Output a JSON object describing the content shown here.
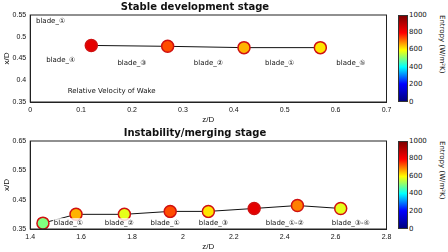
{
  "chart_data": [
    {
      "type": "scatter",
      "title": "Stable development stage",
      "xlabel": "z/D",
      "ylabel": "x/D",
      "xlim": [
        0,
        0.7
      ],
      "xticks": [
        0,
        0.1,
        0.2,
        0.3,
        0.4,
        0.5,
        0.6,
        0.7
      ],
      "ylim": [
        0.35,
        0.55
      ],
      "yticks": [
        0.35,
        0.4,
        0.45,
        0.5,
        0.55
      ],
      "grid": false,
      "series": [
        {
          "color": "#111111",
          "marker": "circle",
          "line_style": "solid",
          "x": [
            0.12,
            0.27,
            0.42,
            0.57
          ],
          "values": [
            0.48,
            0.478,
            0.475,
            0.475
          ],
          "entropy": [
            900,
            800,
            700,
            650
          ]
        }
      ],
      "annotations": [
        {
          "text": "blade_①",
          "x": 0.04,
          "y": 0.535
        },
        {
          "text": "blade_④",
          "x": 0.06,
          "y": 0.445
        },
        {
          "text": "blade_③",
          "x": 0.2,
          "y": 0.44
        },
        {
          "text": "blade_②",
          "x": 0.35,
          "y": 0.44
        },
        {
          "text": "blade_①",
          "x": 0.49,
          "y": 0.44
        },
        {
          "text": "blade_⑤",
          "x": 0.63,
          "y": 0.44
        },
        {
          "text": "Relative Velocity of Wake",
          "x": 0.16,
          "y": 0.375
        }
      ],
      "colorbar": {
        "label": "Entropy",
        "unit": "(W/m²K)",
        "range": [
          0,
          1000
        ],
        "ticks": [
          0,
          200,
          400,
          600,
          800,
          1000
        ]
      }
    },
    {
      "type": "scatter",
      "title": "Instability/merging stage",
      "xlabel": "z/D",
      "ylabel": "x/D",
      "xlim": [
        1.4,
        2.8
      ],
      "xticks": [
        1.4,
        1.6,
        1.8,
        2.0,
        2.2,
        2.4,
        2.6,
        2.8
      ],
      "ylim": [
        0.35,
        0.65
      ],
      "yticks": [
        0.35,
        0.45,
        0.55,
        0.65
      ],
      "grid": false,
      "series": [
        {
          "color": "#111111",
          "marker": "circle",
          "line_style": "solid",
          "x": [
            1.45,
            1.58,
            1.77,
            1.95,
            2.1,
            2.28,
            2.45,
            2.62
          ],
          "values": [
            0.37,
            0.4,
            0.4,
            0.41,
            0.41,
            0.42,
            0.43,
            0.42
          ],
          "entropy": [
            500,
            700,
            600,
            800,
            650,
            900,
            750,
            600
          ]
        }
      ],
      "annotations": [
        {
          "text": "blade_①",
          "x": 1.55,
          "y": 0.37
        },
        {
          "text": "blade_②",
          "x": 1.75,
          "y": 0.37
        },
        {
          "text": "blade_①",
          "x": 1.93,
          "y": 0.37
        },
        {
          "text": "blade_③",
          "x": 2.12,
          "y": 0.37
        },
        {
          "text": "blade_①-②",
          "x": 2.4,
          "y": 0.37
        },
        {
          "text": "blade_③-④",
          "x": 2.66,
          "y": 0.37
        }
      ],
      "colorbar": {
        "label": "Entropy",
        "unit": "(W/m²K)",
        "range": [
          0,
          1000
        ],
        "ticks": [
          0,
          200,
          400,
          600,
          800,
          1000
        ]
      }
    }
  ]
}
